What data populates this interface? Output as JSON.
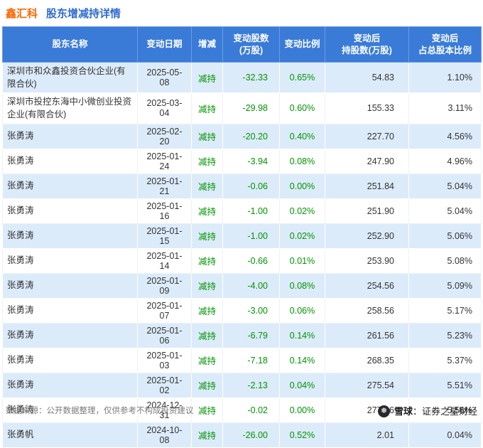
{
  "title": {
    "stock": "鑫汇科",
    "rest": "股东增减持详情"
  },
  "table": {
    "headers": [
      "股东名称",
      "变动日期",
      "增减",
      "变动股数\n(万股)",
      "变动比例",
      "变动后\n持股数(万股)",
      "变动后\n占总股本比例"
    ],
    "rows": [
      {
        "name": "深圳市和众鑫投资合伙企业(有限合伙)",
        "date": "2025-05-08",
        "action": "减持",
        "change": "-32.33",
        "ratio": "0.65%",
        "after": "54.83",
        "after_ratio": "1.10%"
      },
      {
        "name": "深圳市投控东海中小微创业投资企业(有限合伙)",
        "date": "2025-03-04",
        "action": "减持",
        "change": "-29.98",
        "ratio": "0.60%",
        "after": "155.33",
        "after_ratio": "3.11%"
      },
      {
        "name": "张勇涛",
        "date": "2025-02-20",
        "action": "减持",
        "change": "-20.20",
        "ratio": "0.40%",
        "after": "227.70",
        "after_ratio": "4.56%"
      },
      {
        "name": "张勇涛",
        "date": "2025-01-24",
        "action": "减持",
        "change": "-3.94",
        "ratio": "0.08%",
        "after": "247.90",
        "after_ratio": "4.96%"
      },
      {
        "name": "张勇涛",
        "date": "2025-01-21",
        "action": "减持",
        "change": "-0.06",
        "ratio": "0.00%",
        "after": "251.84",
        "after_ratio": "5.04%"
      },
      {
        "name": "张勇涛",
        "date": "2025-01-16",
        "action": "减持",
        "change": "-1.00",
        "ratio": "0.02%",
        "after": "251.90",
        "after_ratio": "5.04%"
      },
      {
        "name": "张勇涛",
        "date": "2025-01-15",
        "action": "减持",
        "change": "-1.00",
        "ratio": "0.02%",
        "after": "252.90",
        "after_ratio": "5.06%"
      },
      {
        "name": "张勇涛",
        "date": "2025-01-14",
        "action": "减持",
        "change": "-0.66",
        "ratio": "0.01%",
        "after": "253.90",
        "after_ratio": "5.08%"
      },
      {
        "name": "张勇涛",
        "date": "2025-01-09",
        "action": "减持",
        "change": "-4.00",
        "ratio": "0.08%",
        "after": "254.56",
        "after_ratio": "5.09%"
      },
      {
        "name": "张勇涛",
        "date": "2025-01-07",
        "action": "减持",
        "change": "-3.00",
        "ratio": "0.06%",
        "after": "258.56",
        "after_ratio": "5.17%"
      },
      {
        "name": "张勇涛",
        "date": "2025-01-06",
        "action": "减持",
        "change": "-6.79",
        "ratio": "0.14%",
        "after": "261.56",
        "after_ratio": "5.23%"
      },
      {
        "name": "张勇涛",
        "date": "2025-01-03",
        "action": "减持",
        "change": "-7.18",
        "ratio": "0.14%",
        "after": "268.35",
        "after_ratio": "5.37%"
      },
      {
        "name": "张勇涛",
        "date": "2025-01-02",
        "action": "减持",
        "change": "-2.13",
        "ratio": "0.04%",
        "after": "275.54",
        "after_ratio": "5.51%"
      },
      {
        "name": "张勇涛",
        "date": "2024-12-31",
        "action": "减持",
        "change": "-0.02",
        "ratio": "0.00%",
        "after": "277.66",
        "after_ratio": "5.56%"
      },
      {
        "name": "张勇帆",
        "date": "2024-10-08",
        "action": "减持",
        "change": "-26.00",
        "ratio": "0.52%",
        "after": "2.01",
        "after_ratio": "0.04%"
      }
    ]
  },
  "footer": {
    "source": "数据来源：公开数据整理，仅供参考不构成投资建议",
    "brand_icon": "❅",
    "brand_bold": "雪球",
    "brand_rest": "：证券之星财经"
  },
  "watermark": {
    "text": "证券之星"
  },
  "colors": {
    "header_bg": "#3a7bd8",
    "row_alt_bg": "#dcebfa",
    "decrease_green": "#009400",
    "title_orange": "#ff6600",
    "title_blue": "#2f6bd0"
  }
}
